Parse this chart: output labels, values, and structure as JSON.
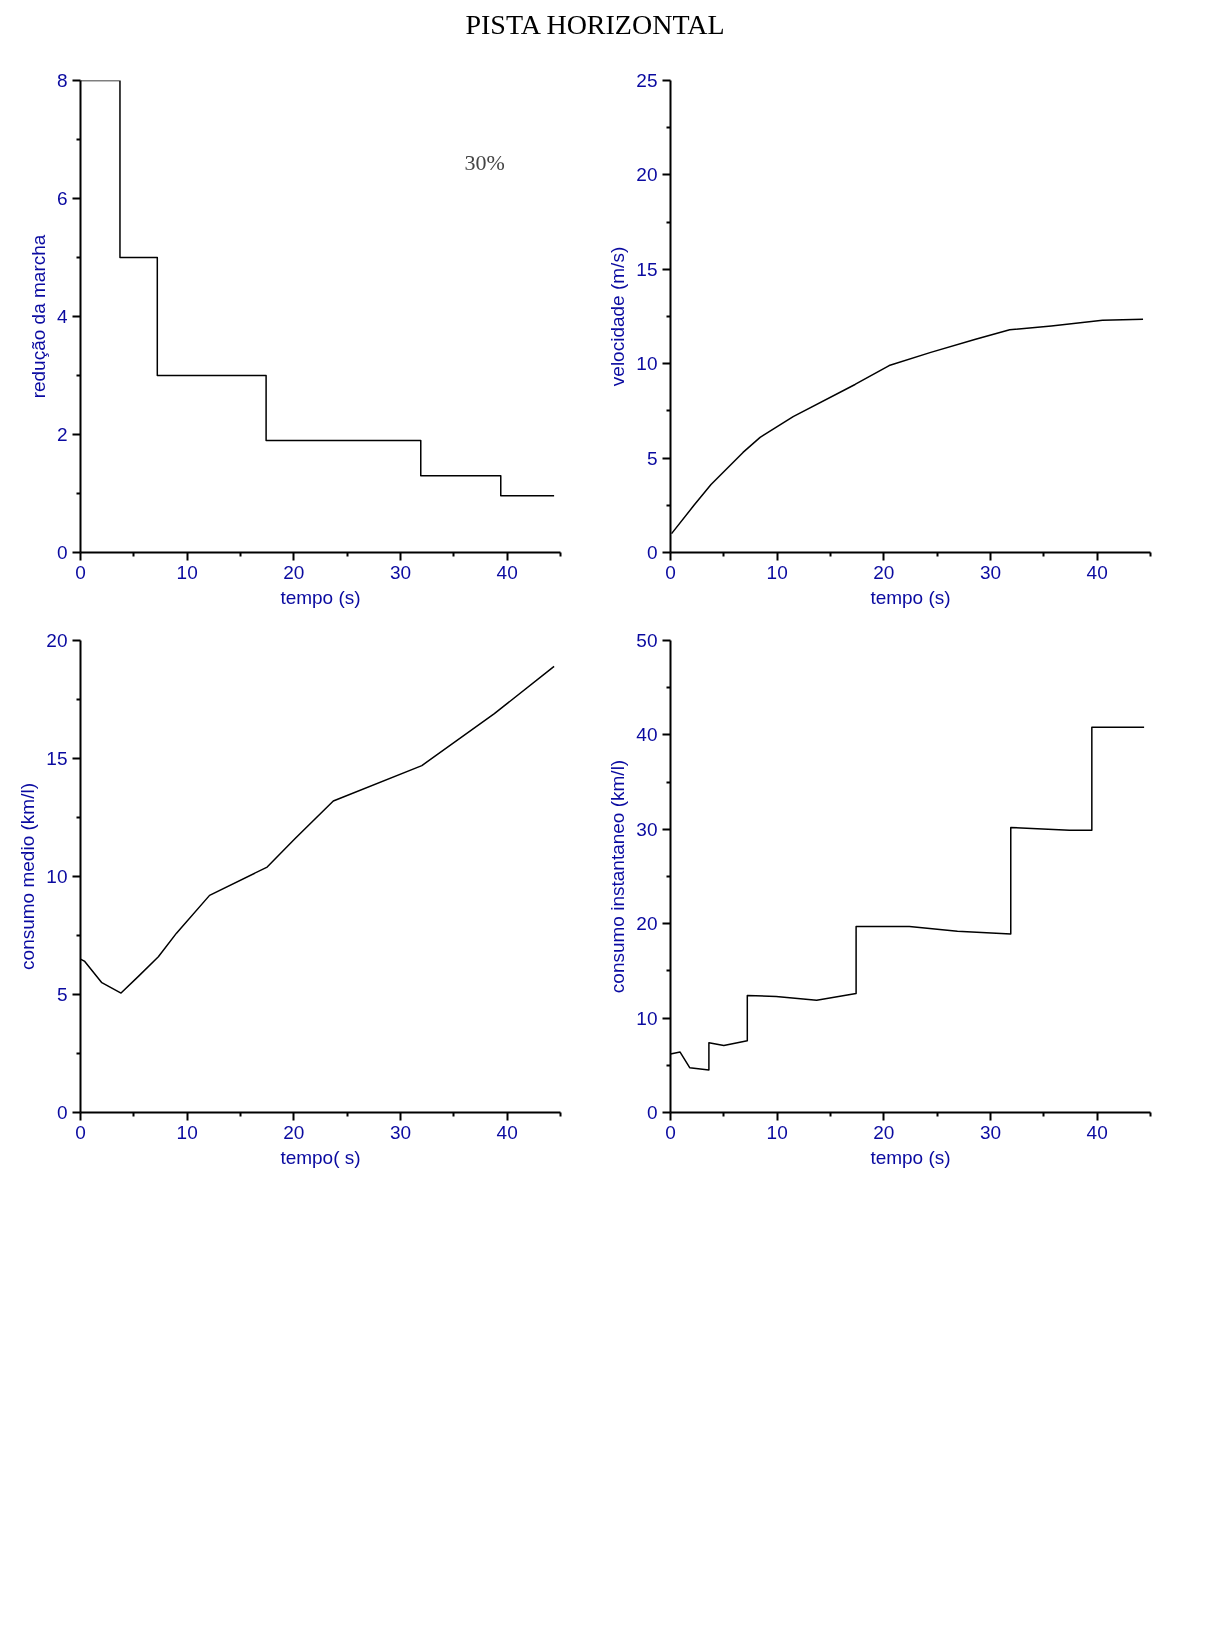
{
  "chart_data": [
    {
      "type": "step",
      "title": "PISTA HORIZONTAL",
      "annotations": [
        "30%"
      ],
      "xlabel": "tempo (s)",
      "ylabel": "redução da marcha",
      "color": "#000000",
      "x": [
        0,
        3.7,
        7.2,
        17.4,
        31.9,
        39.4,
        44.4
      ],
      "values": [
        8,
        5,
        3,
        1.9,
        1.3,
        0.96,
        0.96
      ],
      "xlim": [
        0,
        45
      ],
      "ylim": [
        0,
        8
      ],
      "xticks": [
        0,
        10,
        20,
        30,
        40
      ],
      "yticks": [
        0,
        2,
        4,
        6,
        8
      ]
    },
    {
      "type": "line",
      "xlabel": "tempo (s)",
      "ylabel": "velocidade (m/s)",
      "color": "#000000",
      "x": [
        0.1,
        2.2,
        3.8,
        6.8,
        8.4,
        11.5,
        17.3,
        20.5,
        24.4,
        28.6,
        31.8,
        35.7,
        40.5,
        44.3
      ],
      "values": [
        1.0,
        2.5,
        3.6,
        5.3,
        6.1,
        7.2,
        8.9,
        9.9,
        10.6,
        11.3,
        11.8,
        12.0,
        12.3,
        12.35
      ],
      "xlim": [
        0,
        45
      ],
      "ylim": [
        0,
        25
      ],
      "xticks": [
        0,
        10,
        20,
        30,
        40
      ],
      "yticks": [
        0,
        5,
        10,
        15,
        20,
        25
      ]
    },
    {
      "type": "line",
      "xlabel": "tempo( s)",
      "ylabel": "consumo medio (km/l)",
      "color": "#000000",
      "x": [
        0,
        0.4,
        2,
        3.8,
        5.5,
        7.3,
        9.0,
        12.1,
        17.5,
        20.1,
        23.7,
        32,
        38.8,
        44.4
      ],
      "values": [
        6.5,
        6.4,
        5.5,
        5.06,
        5.8,
        6.6,
        7.6,
        9.2,
        10.4,
        11.6,
        13.2,
        14.7,
        16.9,
        18.9
      ],
      "xlim": [
        0,
        45
      ],
      "ylim": [
        0,
        20
      ],
      "xticks": [
        0,
        10,
        20,
        30,
        40
      ],
      "yticks": [
        0,
        5,
        10,
        15,
        20
      ]
    },
    {
      "type": "line",
      "xlabel": "tempo (s)",
      "ylabel": "consumo instantaneo (km/l)",
      "color": "#000000",
      "x": [
        0,
        0.9,
        1.8,
        3.6,
        3.6,
        5,
        7.2,
        7.2,
        9.9,
        13.7,
        17.4,
        17.4,
        22.4,
        26.9,
        31.9,
        31.9,
        37.4,
        39.5,
        39.5,
        44.4
      ],
      "values": [
        6.2,
        6.4,
        4.75,
        4.5,
        7.4,
        7.1,
        7.6,
        12.4,
        12.3,
        11.9,
        12.6,
        19.7,
        19.7,
        19.2,
        18.9,
        30.2,
        29.9,
        29.9,
        40.8,
        40.8
      ],
      "xlim": [
        0,
        45
      ],
      "ylim": [
        0,
        50
      ],
      "xticks": [
        0,
        10,
        20,
        30,
        40
      ],
      "yticks": [
        0,
        10,
        20,
        30,
        40,
        50
      ]
    }
  ]
}
